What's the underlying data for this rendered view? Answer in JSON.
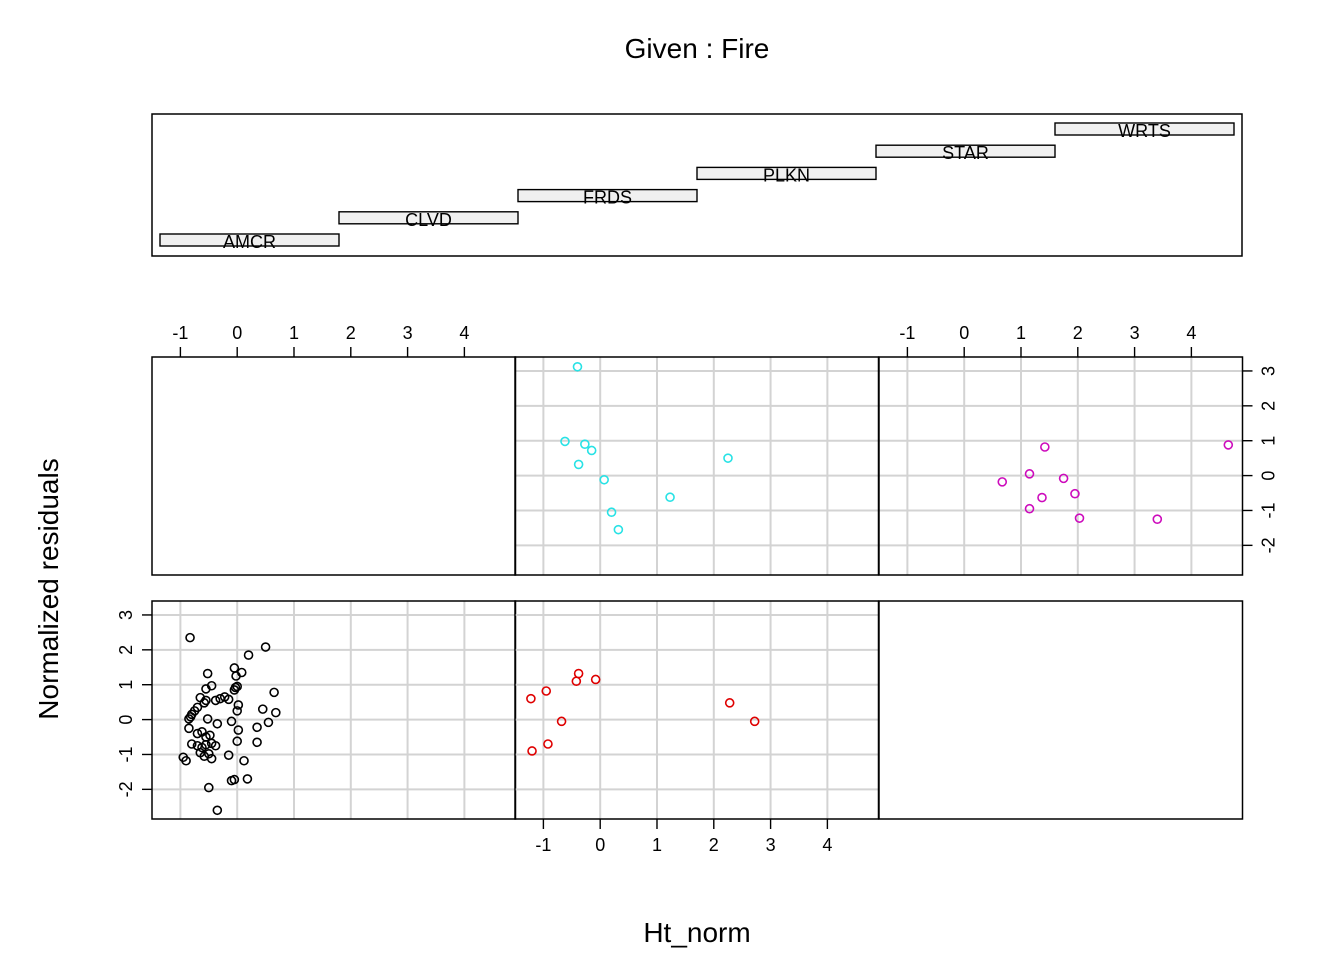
{
  "chart_data": {
    "type": "scatter",
    "subtitle": "Given : Fire",
    "xlabel": "Ht_norm",
    "ylabel": "Normalized residuals",
    "grid": true,
    "x_ticks": [
      -1,
      0,
      1,
      2,
      3,
      4
    ],
    "y_ticks": [
      -2,
      -1,
      0,
      1,
      2,
      3
    ],
    "x_range": [
      -1.5,
      4.9
    ],
    "y_range": [
      -2.85,
      3.4
    ],
    "given": {
      "levels": [
        "AMCR",
        "CLVD",
        "FRDS",
        "PLKN",
        "STAR",
        "WRTS"
      ]
    },
    "panels": [
      {
        "group": "AMCR",
        "color": "#000000",
        "points": [
          [
            -0.83,
            2.35
          ],
          [
            -0.52,
            1.32
          ],
          [
            -0.05,
            1.48
          ],
          [
            0.2,
            1.85
          ],
          [
            0.5,
            2.08
          ],
          [
            -0.55,
            0.88
          ],
          [
            -0.45,
            0.97
          ],
          [
            -0.65,
            0.63
          ],
          [
            -0.3,
            0.6
          ],
          [
            -0.38,
            0.55
          ],
          [
            -0.55,
            0.55
          ],
          [
            -0.58,
            0.48
          ],
          [
            -0.22,
            0.65
          ],
          [
            -0.15,
            0.58
          ],
          [
            -0.05,
            0.85
          ],
          [
            -0.03,
            0.92
          ],
          [
            0.0,
            0.95
          ],
          [
            -0.02,
            1.25
          ],
          [
            0.08,
            1.35
          ],
          [
            0.65,
            0.78
          ],
          [
            0.02,
            0.42
          ],
          [
            0.45,
            0.3
          ],
          [
            0.68,
            0.2
          ],
          [
            0.55,
            -0.08
          ],
          [
            -0.7,
            0.35
          ],
          [
            -0.75,
            0.25
          ],
          [
            -0.8,
            0.15
          ],
          [
            -0.82,
            0.08
          ],
          [
            -0.85,
            0.02
          ],
          [
            -0.52,
            0.02
          ],
          [
            -0.1,
            -0.05
          ],
          [
            0.0,
            0.25
          ],
          [
            -0.35,
            -0.12
          ],
          [
            0.35,
            -0.22
          ],
          [
            0.02,
            -0.3
          ],
          [
            -0.85,
            -0.25
          ],
          [
            -0.7,
            -0.4
          ],
          [
            -0.62,
            -0.35
          ],
          [
            -0.55,
            -0.5
          ],
          [
            -0.48,
            -0.45
          ],
          [
            -0.8,
            -0.7
          ],
          [
            -0.7,
            -0.75
          ],
          [
            -0.62,
            -0.8
          ],
          [
            -0.55,
            -0.72
          ],
          [
            -0.45,
            -0.68
          ],
          [
            -0.38,
            -0.75
          ],
          [
            0.0,
            -0.62
          ],
          [
            0.35,
            -0.65
          ],
          [
            -0.65,
            -0.95
          ],
          [
            -0.58,
            -1.05
          ],
          [
            -0.5,
            -0.98
          ],
          [
            -0.45,
            -1.12
          ],
          [
            -0.15,
            -1.02
          ],
          [
            0.12,
            -1.18
          ],
          [
            -0.95,
            -1.08
          ],
          [
            -0.9,
            -1.18
          ],
          [
            -0.1,
            -1.75
          ],
          [
            -0.05,
            -1.72
          ],
          [
            0.18,
            -1.7
          ],
          [
            -0.5,
            -1.95
          ],
          [
            -0.35,
            -2.6
          ]
        ]
      },
      {
        "group": "CLVD",
        "color": "#df0000",
        "points": [
          [
            -1.22,
            0.6
          ],
          [
            -0.95,
            0.82
          ],
          [
            -0.38,
            1.32
          ],
          [
            -0.42,
            1.1
          ],
          [
            -0.08,
            1.15
          ],
          [
            -0.68,
            -0.05
          ],
          [
            -1.2,
            -0.9
          ],
          [
            -0.92,
            -0.7
          ],
          [
            2.28,
            0.48
          ],
          [
            2.72,
            -0.05
          ]
        ]
      },
      {
        "group": "FRDS",
        "color": "#28e2e5",
        "points": [
          [
            -0.4,
            3.12
          ],
          [
            -0.62,
            0.98
          ],
          [
            -0.27,
            0.9
          ],
          [
            -0.15,
            0.72
          ],
          [
            -0.38,
            0.32
          ],
          [
            2.25,
            0.5
          ],
          [
            0.07,
            -0.12
          ],
          [
            1.23,
            -0.62
          ],
          [
            0.2,
            -1.05
          ],
          [
            0.32,
            -1.55
          ]
        ]
      },
      {
        "group": "PLKN",
        "color": "#000000",
        "points": []
      },
      {
        "group": "STAR",
        "color": "#cd0bbc",
        "points": [
          [
            1.42,
            0.82
          ],
          [
            1.15,
            0.05
          ],
          [
            1.75,
            -0.08
          ],
          [
            0.67,
            -0.18
          ],
          [
            1.95,
            -0.52
          ],
          [
            1.37,
            -0.63
          ],
          [
            1.15,
            -0.95
          ],
          [
            2.03,
            -1.22
          ],
          [
            3.4,
            -1.25
          ],
          [
            4.65,
            0.88
          ]
        ]
      },
      {
        "group": "WRTS",
        "color": "#000000",
        "points": []
      }
    ]
  }
}
